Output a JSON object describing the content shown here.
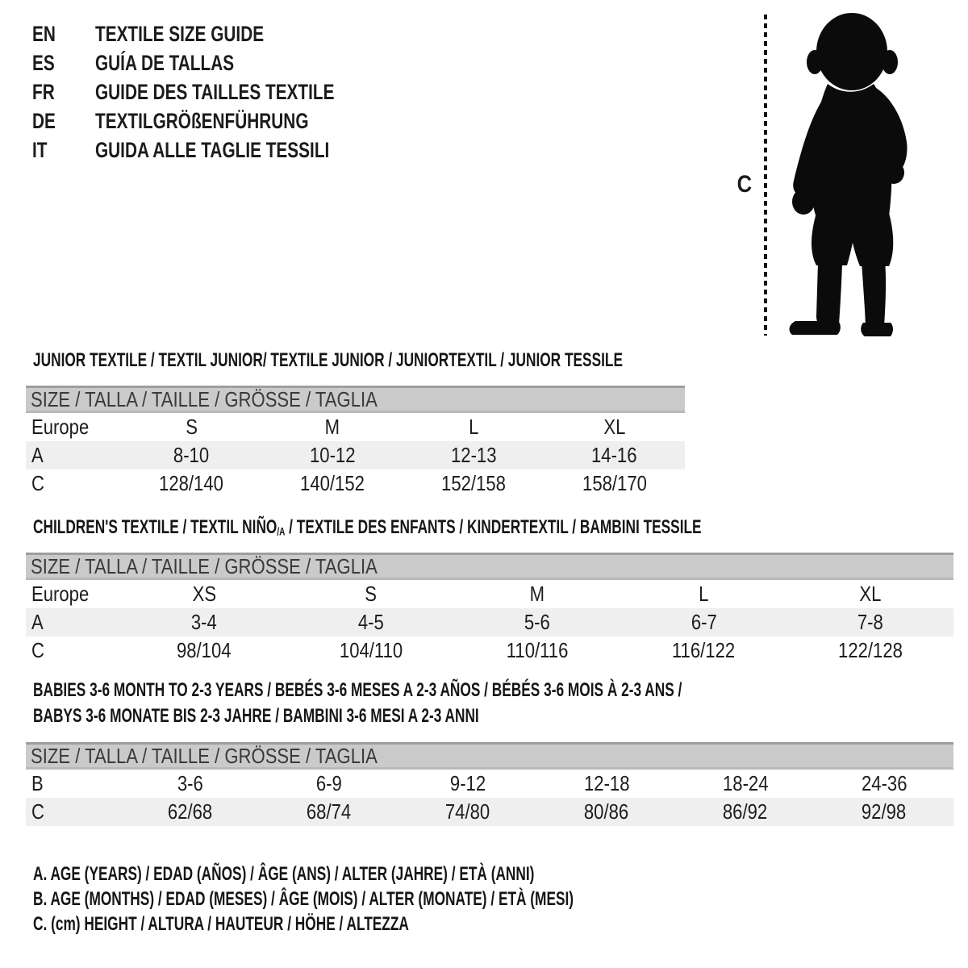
{
  "page": {
    "background": "#ffffff",
    "text_color": "#1c1c1c"
  },
  "colors": {
    "size_bar_bg": "#cacaca",
    "size_bar_border_top": "#9e9e9e",
    "size_bar_border_bottom": "#b9b9b9",
    "row_shaded_bg": "#efefef",
    "silhouette": "#0b0b0b"
  },
  "languages": [
    {
      "code": "EN",
      "label": "TEXTILE SIZE GUIDE"
    },
    {
      "code": "ES",
      "label": "GUÍA DE TALLAS"
    },
    {
      "code": "FR",
      "label": "GUIDE DES TAILLES TEXTILE"
    },
    {
      "code": "DE",
      "label": "TEXTILGRÖßENFÜHRUNG"
    },
    {
      "code": "IT",
      "label": "GUIDA ALLE TAGLIE TESSILI"
    }
  ],
  "figure": {
    "icon": "toddler-silhouette-icon",
    "measurement_label": "C"
  },
  "sections": [
    {
      "id": "junior",
      "title_lines": [
        [
          {
            "text": "JUNIOR TEXTILE / TEXTIL JUNIOR/ TEXTILE JUNIOR / JUNIORTEXTIL / JUNIOR TESSILE"
          }
        ]
      ],
      "size_header": "SIZE / TALLA / TAILLE / GRÖSSE / TAGLIA",
      "rows": [
        {
          "label": "Europe",
          "values": [
            "S",
            "M",
            "L",
            "XL"
          ],
          "shaded": false
        },
        {
          "label": "A",
          "values": [
            "8-10",
            "10-12",
            "12-13",
            "14-16"
          ],
          "shaded": true
        },
        {
          "label": "C",
          "values": [
            "128/140",
            "140/152",
            "152/158",
            "158/170"
          ],
          "shaded": false
        }
      ]
    },
    {
      "id": "children",
      "title_lines": [
        [
          {
            "text": "CHILDREN'S TEXTILE / TEXTIL NIÑO"
          },
          {
            "text": "/A",
            "sub": true
          },
          {
            "text": " / TEXTILE DES ENFANTS / KINDERTEXTIL / BAMBINI TESSILE"
          }
        ]
      ],
      "size_header": "SIZE / TALLA / TAILLE / GRÖSSE / TAGLIA",
      "rows": [
        {
          "label": "Europe",
          "values": [
            "XS",
            "S",
            "M",
            "L",
            "XL"
          ],
          "shaded": false
        },
        {
          "label": "A",
          "values": [
            "3-4",
            "4-5",
            "5-6",
            "6-7",
            "7-8"
          ],
          "shaded": true
        },
        {
          "label": "C",
          "values": [
            "98/104",
            "104/110",
            "110/116",
            "116/122",
            "122/128"
          ],
          "shaded": false
        }
      ]
    },
    {
      "id": "babies",
      "title_lines": [
        [
          {
            "text": "BABIES 3-6 MONTH TO 2-3 YEARS / BEBÉS 3-6 MESES A 2-3 AÑOS / BÉBÉS 3-6 MOIS À 2-3 ANS /"
          }
        ],
        [
          {
            "text": "BABYS 3-6 MONATE BIS 2-3 JAHRE / BAMBINI 3-6 MESI A 2-3 ANNI"
          }
        ]
      ],
      "size_header": "SIZE / TALLA / TAILLE / GRÖSSE / TAGLIA",
      "rows": [
        {
          "label": "B",
          "values": [
            "3-6",
            "6-9",
            "9-12",
            "12-18",
            "18-24",
            "24-36"
          ],
          "shaded": false
        },
        {
          "label": "C",
          "values": [
            "62/68",
            "68/74",
            "74/80",
            "80/86",
            "86/92",
            "92/98"
          ],
          "shaded": true
        }
      ]
    }
  ],
  "legend": [
    "A. AGE (YEARS) / EDAD (AÑOS) / ÂGE (ANS) / ALTER (JAHRE) / ETÀ (ANNI)",
    "B. AGE (MONTHS) / EDAD (MESES) / ÂGE (MOIS) / ALTER (MONATE) / ETÀ (MESI)",
    "C. (cm) HEIGHT / ALTURA / HAUTEUR / HÖHE / ALTEZZA"
  ]
}
